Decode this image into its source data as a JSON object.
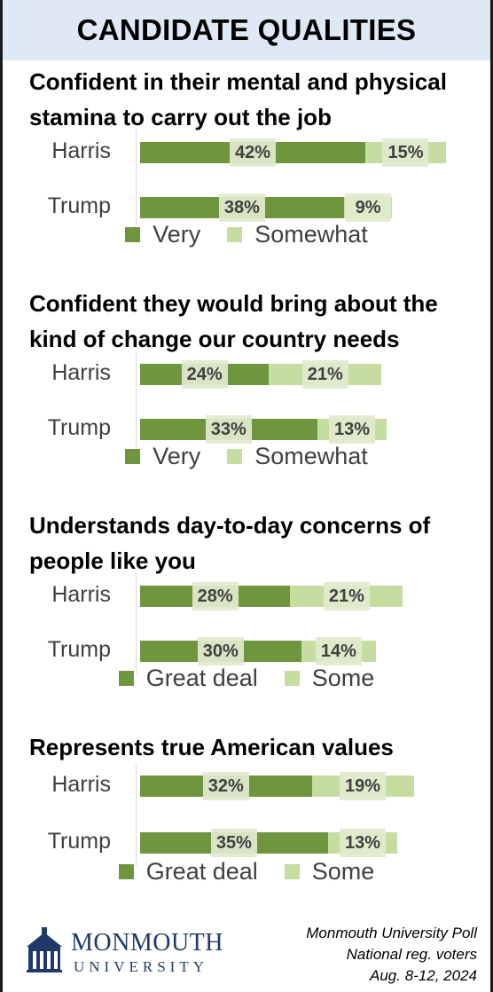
{
  "banner": {
    "title": "CANDIDATE QUALITIES"
  },
  "chart_data": [
    {
      "type": "bar",
      "orientation": "horizontal",
      "stacked": true,
      "title": "Confident in their mental and physical stamina to carry out the job",
      "categories": [
        "Harris",
        "Trump"
      ],
      "series": [
        {
          "name": "Very",
          "values": [
            42,
            38
          ],
          "labels": [
            "42%",
            "38%"
          ]
        },
        {
          "name": "Somewhat",
          "values": [
            15,
            9
          ],
          "labels": [
            "15%",
            "9%"
          ]
        }
      ],
      "legend": [
        "Very",
        "Somewhat"
      ],
      "legend_position": "bottom"
    },
    {
      "type": "bar",
      "orientation": "horizontal",
      "stacked": true,
      "title": "Confident they would bring about the kind of change our country needs",
      "categories": [
        "Harris",
        "Trump"
      ],
      "series": [
        {
          "name": "Very",
          "values": [
            24,
            33
          ],
          "labels": [
            "24%",
            "33%"
          ]
        },
        {
          "name": "Somewhat",
          "values": [
            21,
            13
          ],
          "labels": [
            "21%",
            "13%"
          ]
        }
      ],
      "legend": [
        "Very",
        "Somewhat"
      ],
      "legend_position": "bottom"
    },
    {
      "type": "bar",
      "orientation": "horizontal",
      "stacked": true,
      "title": "Understands day-to-day concerns of people like you",
      "categories": [
        "Harris",
        "Trump"
      ],
      "series": [
        {
          "name": "Great deal",
          "values": [
            28,
            30
          ],
          "labels": [
            "28%",
            "30%"
          ]
        },
        {
          "name": "Some",
          "values": [
            21,
            14
          ],
          "labels": [
            "21%",
            "14%"
          ]
        }
      ],
      "legend": [
        "Great deal",
        "Some"
      ],
      "legend_position": "bottom"
    },
    {
      "type": "bar",
      "orientation": "horizontal",
      "stacked": true,
      "title": "Represents true American values",
      "categories": [
        "Harris",
        "Trump"
      ],
      "series": [
        {
          "name": "Great deal",
          "values": [
            32,
            35
          ],
          "labels": [
            "32%",
            "35%"
          ]
        },
        {
          "name": "Some",
          "values": [
            19,
            13
          ],
          "labels": [
            "19%",
            "13%"
          ]
        }
      ],
      "legend": [
        "Great deal",
        "Some"
      ],
      "legend_position": "bottom"
    }
  ],
  "colors": {
    "primary": "#6f963e",
    "secondary": "#c6dda2",
    "banner": "#dfe9f5",
    "logo": "#1f3a68"
  },
  "logo": {
    "line1": "MONMOUTH",
    "line2": "UNIVERSITY",
    "icon": "university-building-icon"
  },
  "source": {
    "line1": "Monmouth University Poll",
    "line2": "National reg. voters",
    "line3": "Aug. 8-12, 2024"
  }
}
